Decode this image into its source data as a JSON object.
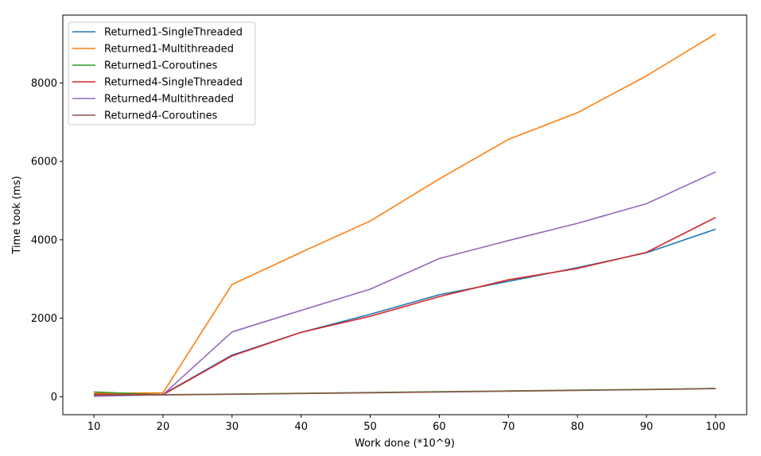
{
  "chart_data": {
    "type": "line",
    "xlabel": "Work done (*10^9)",
    "ylabel": "Time took (ms)",
    "x": [
      10,
      20,
      30,
      40,
      50,
      60,
      70,
      80,
      90,
      100
    ],
    "xticks": [
      10,
      20,
      30,
      40,
      50,
      60,
      70,
      80,
      90,
      100
    ],
    "yticks": [
      0,
      2000,
      4000,
      6000,
      8000
    ],
    "xlim": [
      5.5,
      104.5
    ],
    "ylim": [
      -460,
      9730
    ],
    "grid": false,
    "legend_position": "top-left",
    "series": [
      {
        "name": "Returned1-SingleThreaded",
        "color": "#1f77b4",
        "values": [
          50,
          60,
          1060,
          1640,
          2100,
          2600,
          2940,
          3290,
          3670,
          4270
        ]
      },
      {
        "name": "Returned1-Multithreaded",
        "color": "#ff7f0e",
        "values": [
          80,
          100,
          2860,
          3680,
          4480,
          5550,
          6560,
          7240,
          8180,
          9250
        ]
      },
      {
        "name": "Returned1-Coroutines",
        "color": "#2ca02c",
        "values": [
          120,
          50,
          65,
          85,
          105,
          125,
          145,
          165,
          185,
          210
        ]
      },
      {
        "name": "Returned4-SingleThreaded",
        "color": "#d62728",
        "values": [
          60,
          50,
          1040,
          1640,
          2050,
          2550,
          2980,
          3270,
          3680,
          4570
        ]
      },
      {
        "name": "Returned4-Multithreaded",
        "color": "#9467bd",
        "values": [
          10,
          50,
          1650,
          2200,
          2740,
          3520,
          3980,
          4420,
          4920,
          5730
        ]
      },
      {
        "name": "Returned4-Coroutines",
        "color": "#8c564b",
        "values": [
          40,
          45,
          60,
          80,
          100,
          120,
          140,
          160,
          180,
          205
        ]
      }
    ]
  }
}
